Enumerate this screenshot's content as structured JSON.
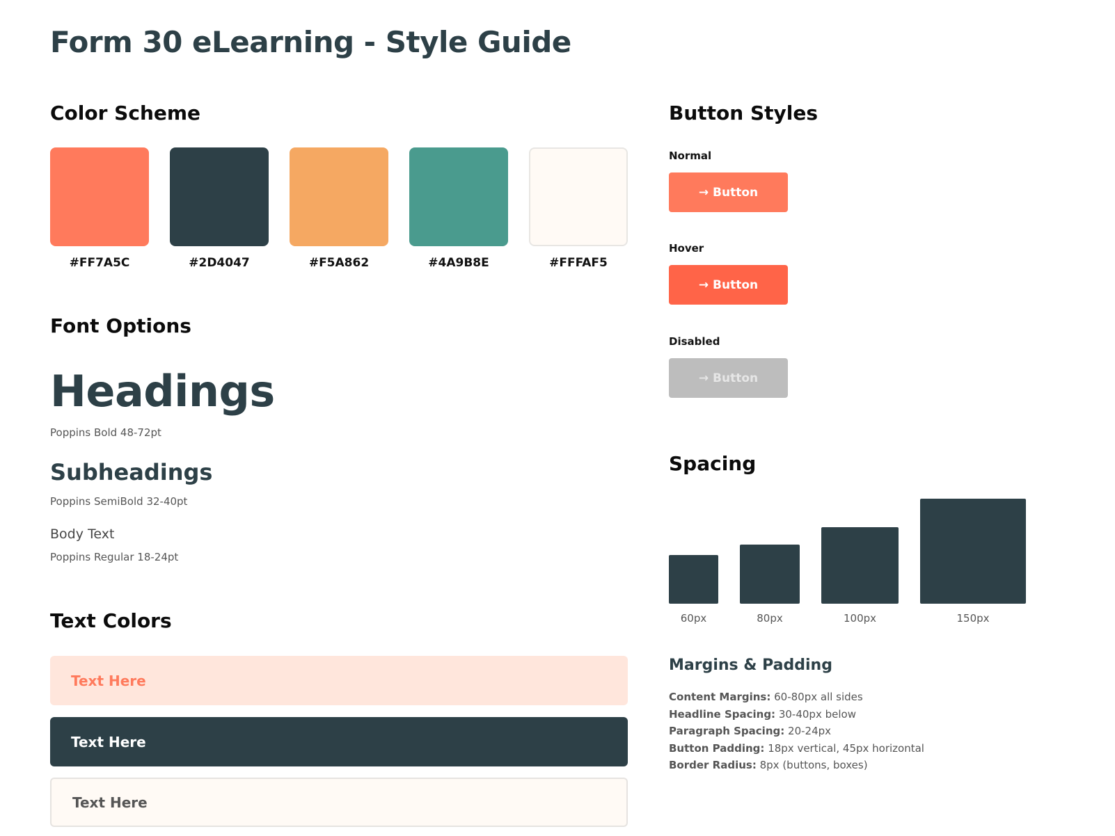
{
  "page": {
    "title": "Form 30 eLearning - Style Guide"
  },
  "color_scheme": {
    "title": "Color Scheme",
    "swatches": [
      {
        "hex": "#FF7A5C",
        "color": "#FF7A5C"
      },
      {
        "hex": "#2D4047",
        "color": "#2D4047"
      },
      {
        "hex": "#F5A862",
        "color": "#F5A862"
      },
      {
        "hex": "#4A9B8E",
        "color": "#4A9B8E"
      },
      {
        "hex": "#FFFAF5",
        "color": "#FFFAF5"
      }
    ]
  },
  "font_options": {
    "title": "Font Options",
    "heading_sample": "Headings",
    "heading_note": "Poppins Bold 48-72pt",
    "subheading_sample": "Subheadings",
    "subheading_note": "Poppins SemiBold 32-40pt",
    "body_sample": "Body Text",
    "body_note": "Poppins Regular 18-24pt"
  },
  "text_colors": {
    "title": "Text Colors",
    "samples": [
      {
        "text": "Text Here",
        "background": "#FFE6DC",
        "color": "#FF7A5C"
      },
      {
        "text": "Text Here",
        "background": "#2D4047",
        "color": "#FFFFFF"
      },
      {
        "text": "Text Here",
        "background": "#FFFAF5",
        "color": "#555555"
      }
    ]
  },
  "button_styles": {
    "title": "Button Styles",
    "states": [
      {
        "label": "Normal",
        "button_text": "→ Button",
        "background": "#FF7A5C",
        "text_color": "#FFFFFF"
      },
      {
        "label": "Hover",
        "button_text": "→ Button",
        "background": "#FF6448",
        "text_color": "#FFFFFF"
      },
      {
        "label": "Disabled",
        "button_text": "→ Button",
        "background": "#BDBDBD",
        "text_color": "#E6E6E6"
      }
    ]
  },
  "spacing": {
    "title": "Spacing",
    "blocks": [
      {
        "label": "60px",
        "value": 60
      },
      {
        "label": "80px",
        "value": 80
      },
      {
        "label": "100px",
        "value": 100
      },
      {
        "label": "150px",
        "value": 150
      }
    ]
  },
  "margins_padding": {
    "title": "Margins & Padding",
    "items": [
      {
        "term": "Content Margins:",
        "value": "60-80px all sides"
      },
      {
        "term": "Headline Spacing:",
        "value": "30-40px below"
      },
      {
        "term": "Paragraph Spacing:",
        "value": "20-24px"
      },
      {
        "term": "Button Padding:",
        "value": "18px vertical, 45px horizontal"
      },
      {
        "term": "Border Radius:",
        "value": "8px (buttons, boxes)"
      }
    ]
  }
}
